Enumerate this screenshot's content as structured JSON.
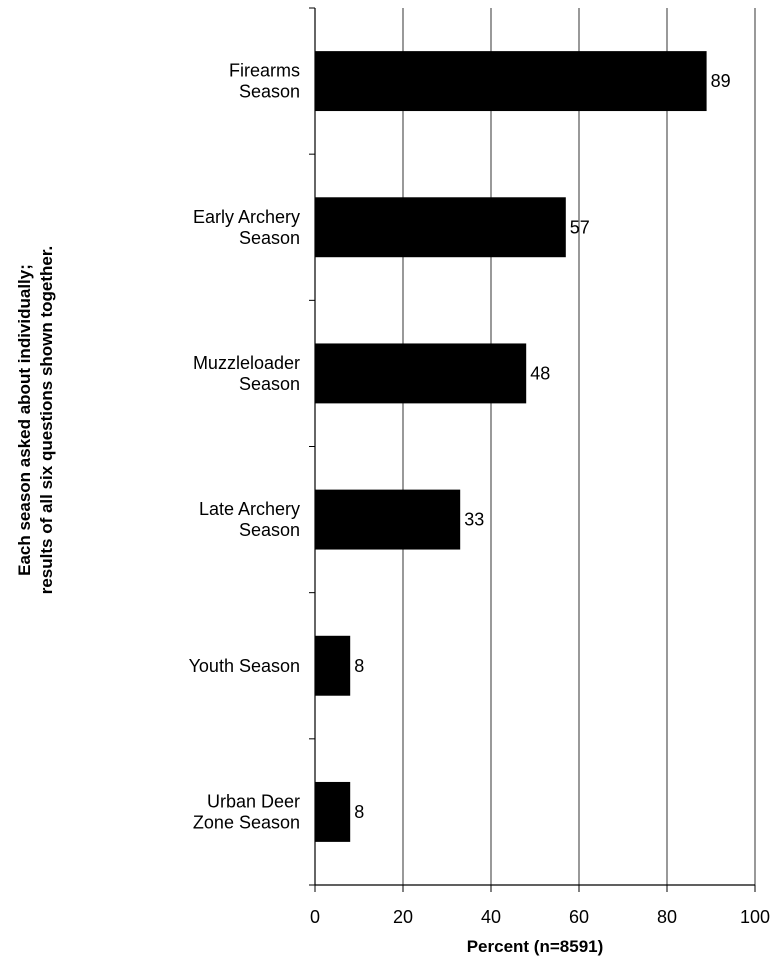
{
  "chart_data": {
    "type": "bar",
    "orientation": "horizontal",
    "categories": [
      [
        "Firearms",
        "Season"
      ],
      [
        "Early Archery",
        "Season"
      ],
      [
        "Muzzleloader",
        "Season"
      ],
      [
        "Late Archery",
        "Season"
      ],
      [
        "Youth Season"
      ],
      [
        "Urban Deer",
        "Zone Season"
      ]
    ],
    "values": [
      89,
      57,
      48,
      33,
      8,
      8
    ],
    "bar_color": "#000000",
    "xlabel": "Percent (n=8591)",
    "ylabel": [
      "Each season asked about individually;",
      "results of all six questions shown together."
    ],
    "xlim": [
      0,
      100
    ],
    "xticks": [
      0,
      20,
      40,
      60,
      80,
      100
    ],
    "grid": "vertical",
    "data_labels": true
  }
}
